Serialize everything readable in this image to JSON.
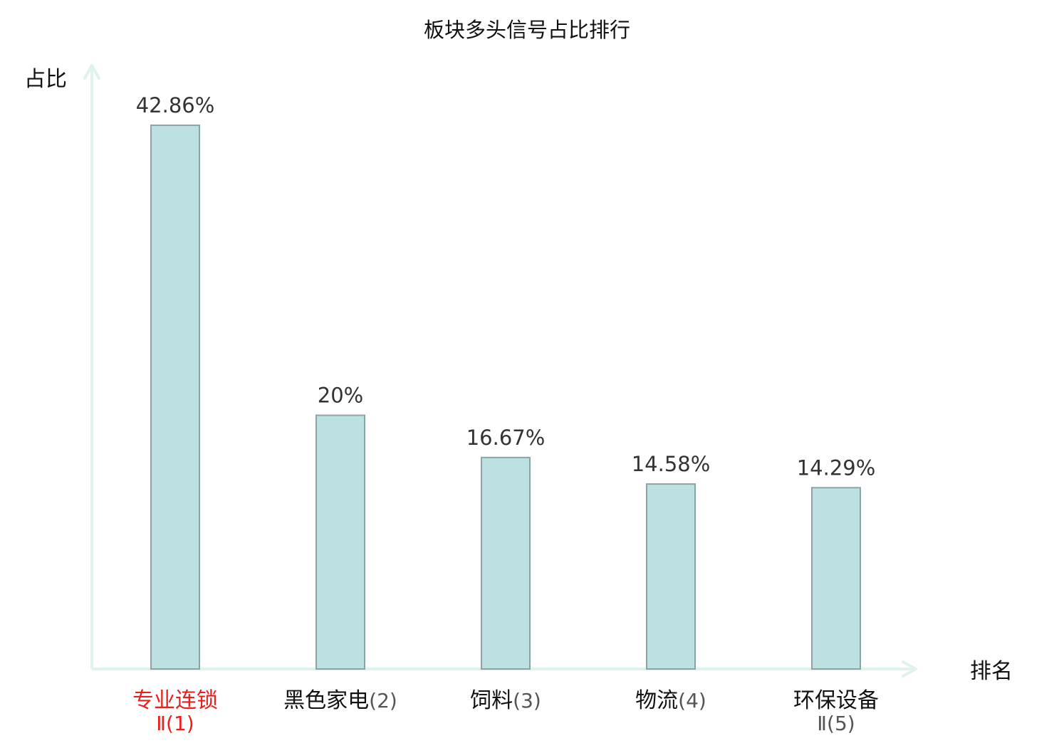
{
  "chart_data": {
    "type": "bar",
    "title": "板块多头信号占比排行",
    "ylabel": "占比",
    "xlabel": "排名",
    "categories": [
      {
        "name": "专业连锁",
        "rank": "Ⅱ(1)"
      },
      {
        "name": "黑色家电",
        "rank": "(2)"
      },
      {
        "name": "饲料",
        "rank": "(3)"
      },
      {
        "name": "物流",
        "rank": "(4)"
      },
      {
        "name": "环保设备",
        "rank": "Ⅱ(5)"
      }
    ],
    "values": [
      42.86,
      20,
      16.67,
      14.58,
      14.29
    ],
    "value_labels": [
      "42.86%",
      "20%",
      "16.67%",
      "14.58%",
      "14.29%"
    ],
    "highlight_index": 0,
    "ylim": [
      0,
      46
    ],
    "grid": false,
    "colors": {
      "bar_fill": "#bde0e2",
      "bar_stroke": "#8aa5a6",
      "axis": "#dff2ee",
      "highlight_text": "#e8201b",
      "text": "#111111",
      "value_text": "#333333",
      "rank_text": "#555555"
    }
  }
}
